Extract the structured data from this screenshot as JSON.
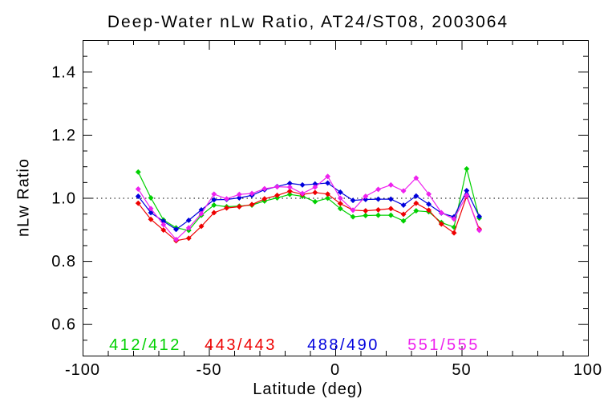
{
  "figure": {
    "background": "#ffffff",
    "axis_color": "#000000"
  },
  "chart_data": {
    "type": "line",
    "title": "Deep-Water nLw Ratio, AT24/ST08, 2003064",
    "xlabel": "Latitude (deg)",
    "ylabel": "nLw Ratio",
    "xlim": [
      -100,
      100
    ],
    "ylim": [
      0.5,
      1.5
    ],
    "x_ticks": [
      -100,
      -50,
      0,
      50,
      100
    ],
    "x_tick_labels": [
      "-100",
      "-50",
      "0",
      "50",
      "100"
    ],
    "x_minor_step": 10,
    "y_ticks": [
      0.6,
      0.8,
      1.0,
      1.2,
      1.4
    ],
    "y_tick_labels": [
      "0.6",
      "0.8",
      "1.0",
      "1.2",
      "1.4"
    ],
    "y_minor_step": 0.05,
    "grid": false,
    "marker": "diamond",
    "legend_position": "inside-bottom",
    "reference_line": {
      "y": 1.0,
      "style": "dotted",
      "color": "#000000"
    },
    "x": [
      -78,
      -73,
      -68,
      -63,
      -58,
      -53,
      -48,
      -43,
      -38,
      -33,
      -28,
      -23,
      -18,
      -13,
      -8,
      -3,
      2,
      7,
      12,
      17,
      22,
      27,
      32,
      37,
      42,
      47,
      52,
      57
    ],
    "series": [
      {
        "name": "412/412",
        "color": "#00d000",
        "values": [
          1.082,
          1.0,
          0.93,
          0.905,
          0.897,
          0.945,
          0.977,
          0.972,
          0.974,
          0.977,
          0.99,
          1.0,
          1.011,
          1.005,
          0.988,
          0.999,
          0.966,
          0.94,
          0.944,
          0.945,
          0.945,
          0.927,
          0.959,
          0.956,
          0.922,
          0.907,
          1.092,
          0.936
        ]
      },
      {
        "name": "443/443",
        "color": "#ee0000",
        "values": [
          0.983,
          0.932,
          0.898,
          0.864,
          0.872,
          0.91,
          0.953,
          0.968,
          0.972,
          0.979,
          0.997,
          1.008,
          1.021,
          1.011,
          1.017,
          1.012,
          0.982,
          0.961,
          0.959,
          0.962,
          0.966,
          0.948,
          0.983,
          0.961,
          0.917,
          0.889,
          1.005,
          0.901
        ]
      },
      {
        "name": "488/490",
        "color": "#0000dd",
        "values": [
          1.005,
          0.953,
          0.926,
          0.9,
          0.929,
          0.962,
          0.994,
          0.995,
          1.0,
          1.008,
          1.026,
          1.036,
          1.046,
          1.041,
          1.044,
          1.047,
          1.018,
          0.992,
          0.995,
          0.996,
          0.996,
          0.977,
          1.006,
          0.98,
          0.952,
          0.94,
          1.023,
          0.941
        ]
      },
      {
        "name": "551/555",
        "color": "#ee22ee",
        "values": [
          1.028,
          0.966,
          0.915,
          0.868,
          0.905,
          0.95,
          1.012,
          0.997,
          1.011,
          1.014,
          1.029,
          1.035,
          1.034,
          1.014,
          1.034,
          1.068,
          0.999,
          0.961,
          1.005,
          1.027,
          1.041,
          1.022,
          1.063,
          1.012,
          0.953,
          0.933,
          1.008,
          0.897
        ]
      }
    ]
  }
}
